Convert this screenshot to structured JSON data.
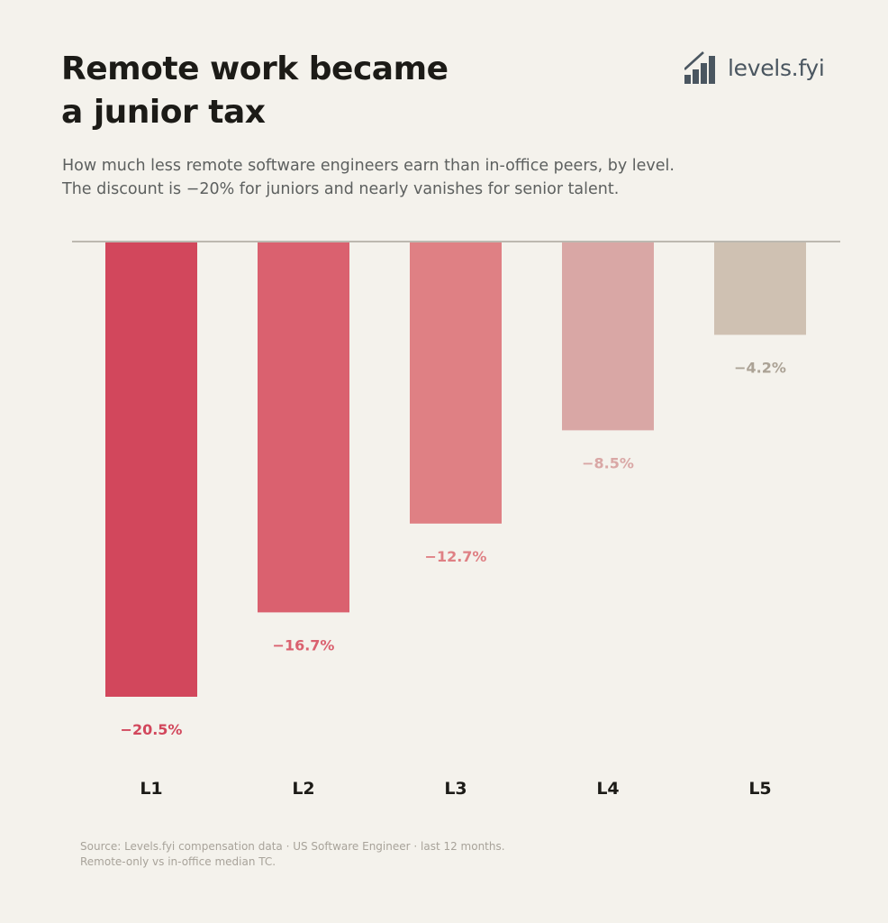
{
  "header": {
    "title_lines": [
      "Remote work became",
      "a junior tax"
    ],
    "subtitle_lines": [
      "How much less remote software engineers earn than in-office peers, by level.",
      "The discount is −20% for juniors and nearly vanishes for senior talent."
    ]
  },
  "brand": {
    "name": "levels.fyi",
    "icon": "staircase-logo-icon",
    "color": "#4a5660"
  },
  "chart_data": {
    "type": "bar",
    "categories": [
      "L1",
      "L2",
      "L3",
      "L4",
      "L5"
    ],
    "values": [
      -20.5,
      -16.7,
      -12.7,
      -8.5,
      -4.2
    ],
    "value_labels": [
      "−20.5%",
      "−16.7%",
      "−12.7%",
      "−8.5%",
      "−4.2%"
    ],
    "colors": [
      "#d2475c",
      "#da616f",
      "#df8084",
      "#d9a7a5",
      "#cfc1b2"
    ],
    "label_colors": [
      "#d2475c",
      "#da616f",
      "#df8084",
      "#d9a7a5",
      "#aba295"
    ],
    "ylim": [
      -20.5,
      0
    ],
    "grid": false,
    "baseline_color": "#bcb8b0"
  },
  "footer": {
    "source_lines": [
      "Source: Levels.fyi compensation data · US Software Engineer · last 12 months.",
      "Remote-only vs in-office median TC."
    ]
  }
}
